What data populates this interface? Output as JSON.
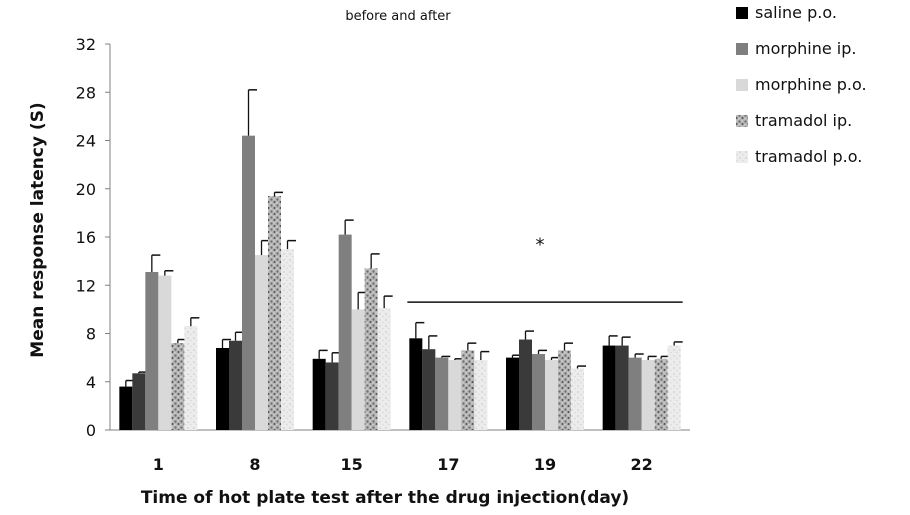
{
  "chart_data": {
    "type": "bar",
    "title": "before and after",
    "xlabel": "Time of hot plate test after the drug injection(day)",
    "ylabel": "Mean response latency  (S)",
    "ylim": [
      0,
      32
    ],
    "yticks": [
      0,
      4,
      8,
      12,
      16,
      20,
      24,
      28,
      32
    ],
    "grid": false,
    "legend_position": "right",
    "categories": [
      "1",
      "8",
      "15",
      "17",
      "19",
      "22"
    ],
    "series": [
      {
        "name": "saline p.o.",
        "color": "#000000",
        "pattern": "solid",
        "values": [
          3.6,
          6.8,
          5.9,
          7.6,
          6.0,
          7.0
        ],
        "errors": [
          0.5,
          0.7,
          0.7,
          1.3,
          0.2,
          0.8
        ]
      },
      {
        "name": "",
        "color": "#3a3a3a",
        "pattern": "solid",
        "values": [
          4.7,
          7.4,
          5.6,
          6.7,
          7.5,
          7.0
        ],
        "errors": [
          0.1,
          0.7,
          0.8,
          1.1,
          0.7,
          0.7
        ]
      },
      {
        "name": "morphine ip.",
        "color": "#7f7f7f",
        "pattern": "solid",
        "values": [
          13.1,
          24.4,
          16.2,
          6.0,
          6.3,
          6.0
        ],
        "errors": [
          1.4,
          3.8,
          1.2,
          0.1,
          0.3,
          0.3
        ]
      },
      {
        "name": "morphine p.o.",
        "color": "#d9d9d9",
        "pattern": "solid",
        "values": [
          12.8,
          14.5,
          10.0,
          5.8,
          5.8,
          5.8
        ],
        "errors": [
          0.4,
          1.2,
          1.4,
          0.1,
          0.2,
          0.3
        ]
      },
      {
        "name": "tramadol ip.",
        "color": "#a6a6a6",
        "pattern": "granite",
        "values": [
          7.2,
          19.4,
          13.4,
          6.6,
          6.6,
          5.9
        ],
        "errors": [
          0.3,
          0.3,
          1.2,
          0.6,
          0.6,
          0.2
        ]
      },
      {
        "name": "tramadol p.o.",
        "color": "#e6e6e6",
        "pattern": "light",
        "values": [
          8.6,
          15.0,
          10.1,
          5.8,
          5.1,
          7.0
        ],
        "errors": [
          0.7,
          0.7,
          1.0,
          0.7,
          0.2,
          0.3
        ]
      }
    ],
    "annotation": {
      "text": "*",
      "spans_categories": [
        "17",
        "22"
      ],
      "line_y": 10.6,
      "star_y": 15.7
    }
  }
}
